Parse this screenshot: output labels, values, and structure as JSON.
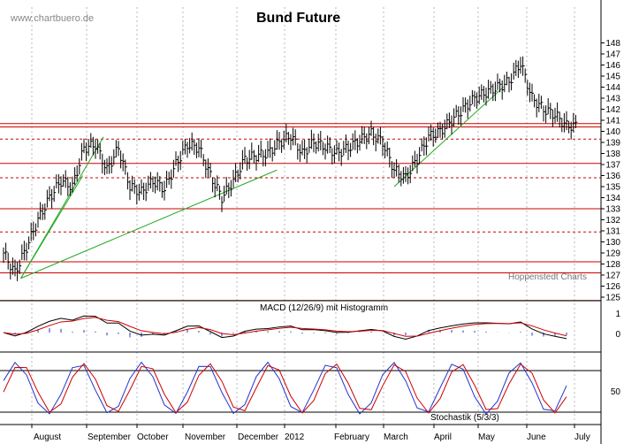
{
  "chart_data": {
    "type": "ohlc",
    "title": "Bund Future",
    "watermark": "www.chartbuero.de",
    "credit": "Hoppenstedt Charts",
    "xlabel": "",
    "ylabel": "",
    "grid": true,
    "months": [
      "August",
      "September",
      "October",
      "November",
      "December",
      "2012",
      "February",
      "March",
      "April",
      "May",
      "June",
      "July"
    ],
    "price": {
      "ylim": [
        124,
        148
      ],
      "yticks": [
        125,
        126,
        127,
        128,
        129,
        130,
        131,
        132,
        133,
        134,
        135,
        136,
        137,
        138,
        139,
        140,
        141,
        142,
        143,
        144,
        145,
        146,
        147,
        148
      ],
      "series": [
        {
          "week": 0,
          "close": 129.0
        },
        {
          "week": 1,
          "close": 127.2
        },
        {
          "week": 2,
          "close": 129.5
        },
        {
          "week": 3,
          "close": 132.0
        },
        {
          "week": 4,
          "close": 134.0
        },
        {
          "week": 5,
          "close": 135.5
        },
        {
          "week": 6,
          "close": 135.0
        },
        {
          "week": 7,
          "close": 138.5
        },
        {
          "week": 8,
          "close": 138.8
        },
        {
          "week": 9,
          "close": 136.5
        },
        {
          "week": 10,
          "close": 138.5
        },
        {
          "week": 11,
          "close": 135.0
        },
        {
          "week": 12,
          "close": 134.5
        },
        {
          "week": 13,
          "close": 135.5
        },
        {
          "week": 14,
          "close": 134.8
        },
        {
          "week": 15,
          "close": 137.0
        },
        {
          "week": 16,
          "close": 138.8
        },
        {
          "week": 17,
          "close": 138.5
        },
        {
          "week": 18,
          "close": 136.0
        },
        {
          "week": 19,
          "close": 134.0
        },
        {
          "week": 20,
          "close": 135.5
        },
        {
          "week": 21,
          "close": 137.5
        },
        {
          "week": 22,
          "close": 137.8
        },
        {
          "week": 23,
          "close": 138.0
        },
        {
          "week": 24,
          "close": 139.0
        },
        {
          "week": 25,
          "close": 139.6
        },
        {
          "week": 26,
          "close": 138.0
        },
        {
          "week": 27,
          "close": 139.0
        },
        {
          "week": 28,
          "close": 138.6
        },
        {
          "week": 29,
          "close": 138.0
        },
        {
          "week": 30,
          "close": 138.5
        },
        {
          "week": 31,
          "close": 139.2
        },
        {
          "week": 32,
          "close": 139.8
        },
        {
          "week": 33,
          "close": 139.0
        },
        {
          "week": 34,
          "close": 136.5
        },
        {
          "week": 35,
          "close": 135.8
        },
        {
          "week": 36,
          "close": 137.5
        },
        {
          "week": 37,
          "close": 139.5
        },
        {
          "week": 38,
          "close": 140.0
        },
        {
          "week": 39,
          "close": 141.0
        },
        {
          "week": 40,
          "close": 142.0
        },
        {
          "week": 41,
          "close": 143.0
        },
        {
          "week": 42,
          "close": 143.5
        },
        {
          "week": 43,
          "close": 144.0
        },
        {
          "week": 44,
          "close": 144.5
        },
        {
          "week": 45,
          "close": 146.2
        },
        {
          "week": 46,
          "close": 143.0
        },
        {
          "week": 47,
          "close": 142.0
        },
        {
          "week": 48,
          "close": 141.5
        },
        {
          "week": 49,
          "close": 140.5
        }
      ],
      "horizontal_lines": [
        {
          "y": 124.7,
          "style": "solid"
        },
        {
          "y": 127.2,
          "style": "solid"
        },
        {
          "y": 128.2,
          "style": "solid"
        },
        {
          "y": 130.9,
          "style": "dashed"
        },
        {
          "y": 133.0,
          "style": "solid"
        },
        {
          "y": 135.8,
          "style": "dashed"
        },
        {
          "y": 137.1,
          "style": "solid"
        },
        {
          "y": 139.3,
          "style": "dashed"
        },
        {
          "y": 140.4,
          "style": "solid"
        },
        {
          "y": 140.7,
          "style": "solid"
        }
      ],
      "trend_lines": [
        {
          "from": {
            "week": 1.5,
            "value": 126.7
          },
          "to": {
            "week": 8.7,
            "value": 139.5
          }
        },
        {
          "from": {
            "week": 1.5,
            "value": 126.7
          },
          "to": {
            "week": 6.9,
            "value": 136.0
          }
        },
        {
          "from": {
            "week": 1.5,
            "value": 126.7
          },
          "to": {
            "week": 23.8,
            "value": 136.5
          }
        },
        {
          "from": {
            "week": 34.0,
            "value": 135.0
          },
          "to": {
            "week": 43.5,
            "value": 144.0
          }
        }
      ]
    },
    "macd": {
      "label": "MACD (12/26/9) mit Histogramm",
      "yticks": [
        1,
        0
      ]
    },
    "stochastic": {
      "label": "Stochastik (5/3/3)",
      "yticks": [
        50
      ]
    }
  }
}
